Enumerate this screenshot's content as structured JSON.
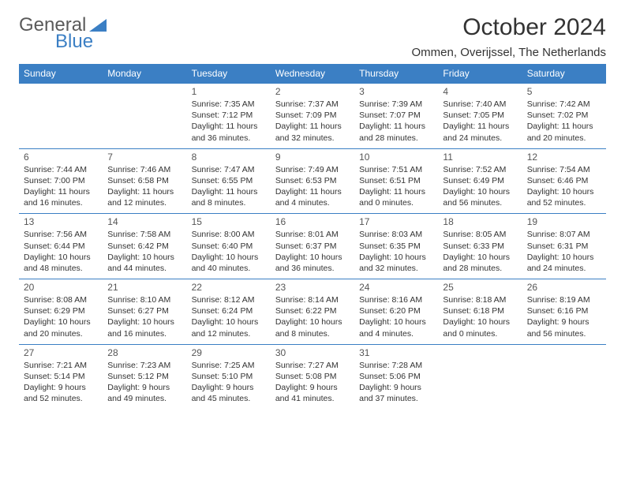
{
  "logo": {
    "part1": "General",
    "part2": "Blue"
  },
  "title": "October 2024",
  "subtitle": "Ommen, Overijssel, The Netherlands",
  "colors": {
    "header_bg": "#3b7fc4",
    "header_text": "#ffffff",
    "border": "#3b7fc4",
    "text": "#333333",
    "logo_gray": "#5a5a5a",
    "logo_blue": "#3b7fc4"
  },
  "days_of_week": [
    "Sunday",
    "Monday",
    "Tuesday",
    "Wednesday",
    "Thursday",
    "Friday",
    "Saturday"
  ],
  "weeks": [
    [
      null,
      null,
      {
        "n": "1",
        "sr": "Sunrise: 7:35 AM",
        "ss": "Sunset: 7:12 PM",
        "dl": "Daylight: 11 hours and 36 minutes."
      },
      {
        "n": "2",
        "sr": "Sunrise: 7:37 AM",
        "ss": "Sunset: 7:09 PM",
        "dl": "Daylight: 11 hours and 32 minutes."
      },
      {
        "n": "3",
        "sr": "Sunrise: 7:39 AM",
        "ss": "Sunset: 7:07 PM",
        "dl": "Daylight: 11 hours and 28 minutes."
      },
      {
        "n": "4",
        "sr": "Sunrise: 7:40 AM",
        "ss": "Sunset: 7:05 PM",
        "dl": "Daylight: 11 hours and 24 minutes."
      },
      {
        "n": "5",
        "sr": "Sunrise: 7:42 AM",
        "ss": "Sunset: 7:02 PM",
        "dl": "Daylight: 11 hours and 20 minutes."
      }
    ],
    [
      {
        "n": "6",
        "sr": "Sunrise: 7:44 AM",
        "ss": "Sunset: 7:00 PM",
        "dl": "Daylight: 11 hours and 16 minutes."
      },
      {
        "n": "7",
        "sr": "Sunrise: 7:46 AM",
        "ss": "Sunset: 6:58 PM",
        "dl": "Daylight: 11 hours and 12 minutes."
      },
      {
        "n": "8",
        "sr": "Sunrise: 7:47 AM",
        "ss": "Sunset: 6:55 PM",
        "dl": "Daylight: 11 hours and 8 minutes."
      },
      {
        "n": "9",
        "sr": "Sunrise: 7:49 AM",
        "ss": "Sunset: 6:53 PM",
        "dl": "Daylight: 11 hours and 4 minutes."
      },
      {
        "n": "10",
        "sr": "Sunrise: 7:51 AM",
        "ss": "Sunset: 6:51 PM",
        "dl": "Daylight: 11 hours and 0 minutes."
      },
      {
        "n": "11",
        "sr": "Sunrise: 7:52 AM",
        "ss": "Sunset: 6:49 PM",
        "dl": "Daylight: 10 hours and 56 minutes."
      },
      {
        "n": "12",
        "sr": "Sunrise: 7:54 AM",
        "ss": "Sunset: 6:46 PM",
        "dl": "Daylight: 10 hours and 52 minutes."
      }
    ],
    [
      {
        "n": "13",
        "sr": "Sunrise: 7:56 AM",
        "ss": "Sunset: 6:44 PM",
        "dl": "Daylight: 10 hours and 48 minutes."
      },
      {
        "n": "14",
        "sr": "Sunrise: 7:58 AM",
        "ss": "Sunset: 6:42 PM",
        "dl": "Daylight: 10 hours and 44 minutes."
      },
      {
        "n": "15",
        "sr": "Sunrise: 8:00 AM",
        "ss": "Sunset: 6:40 PM",
        "dl": "Daylight: 10 hours and 40 minutes."
      },
      {
        "n": "16",
        "sr": "Sunrise: 8:01 AM",
        "ss": "Sunset: 6:37 PM",
        "dl": "Daylight: 10 hours and 36 minutes."
      },
      {
        "n": "17",
        "sr": "Sunrise: 8:03 AM",
        "ss": "Sunset: 6:35 PM",
        "dl": "Daylight: 10 hours and 32 minutes."
      },
      {
        "n": "18",
        "sr": "Sunrise: 8:05 AM",
        "ss": "Sunset: 6:33 PM",
        "dl": "Daylight: 10 hours and 28 minutes."
      },
      {
        "n": "19",
        "sr": "Sunrise: 8:07 AM",
        "ss": "Sunset: 6:31 PM",
        "dl": "Daylight: 10 hours and 24 minutes."
      }
    ],
    [
      {
        "n": "20",
        "sr": "Sunrise: 8:08 AM",
        "ss": "Sunset: 6:29 PM",
        "dl": "Daylight: 10 hours and 20 minutes."
      },
      {
        "n": "21",
        "sr": "Sunrise: 8:10 AM",
        "ss": "Sunset: 6:27 PM",
        "dl": "Daylight: 10 hours and 16 minutes."
      },
      {
        "n": "22",
        "sr": "Sunrise: 8:12 AM",
        "ss": "Sunset: 6:24 PM",
        "dl": "Daylight: 10 hours and 12 minutes."
      },
      {
        "n": "23",
        "sr": "Sunrise: 8:14 AM",
        "ss": "Sunset: 6:22 PM",
        "dl": "Daylight: 10 hours and 8 minutes."
      },
      {
        "n": "24",
        "sr": "Sunrise: 8:16 AM",
        "ss": "Sunset: 6:20 PM",
        "dl": "Daylight: 10 hours and 4 minutes."
      },
      {
        "n": "25",
        "sr": "Sunrise: 8:18 AM",
        "ss": "Sunset: 6:18 PM",
        "dl": "Daylight: 10 hours and 0 minutes."
      },
      {
        "n": "26",
        "sr": "Sunrise: 8:19 AM",
        "ss": "Sunset: 6:16 PM",
        "dl": "Daylight: 9 hours and 56 minutes."
      }
    ],
    [
      {
        "n": "27",
        "sr": "Sunrise: 7:21 AM",
        "ss": "Sunset: 5:14 PM",
        "dl": "Daylight: 9 hours and 52 minutes."
      },
      {
        "n": "28",
        "sr": "Sunrise: 7:23 AM",
        "ss": "Sunset: 5:12 PM",
        "dl": "Daylight: 9 hours and 49 minutes."
      },
      {
        "n": "29",
        "sr": "Sunrise: 7:25 AM",
        "ss": "Sunset: 5:10 PM",
        "dl": "Daylight: 9 hours and 45 minutes."
      },
      {
        "n": "30",
        "sr": "Sunrise: 7:27 AM",
        "ss": "Sunset: 5:08 PM",
        "dl": "Daylight: 9 hours and 41 minutes."
      },
      {
        "n": "31",
        "sr": "Sunrise: 7:28 AM",
        "ss": "Sunset: 5:06 PM",
        "dl": "Daylight: 9 hours and 37 minutes."
      },
      null,
      null
    ]
  ]
}
